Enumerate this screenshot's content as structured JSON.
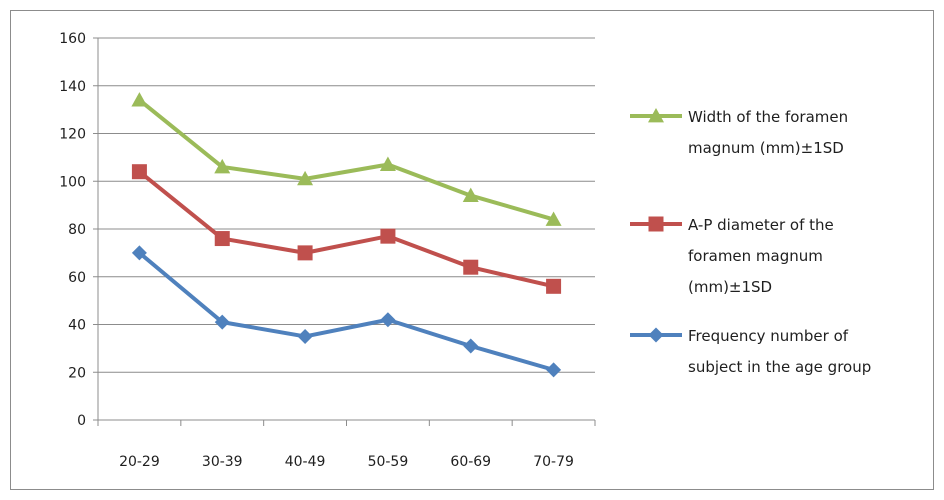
{
  "chart_data": {
    "type": "line",
    "categories": [
      "20-29",
      "30-39",
      "40-49",
      "50-59",
      "60-69",
      "70-79"
    ],
    "series": [
      {
        "name": "Width of the foramen magnum (mm)±1SD",
        "legend_lines": [
          "Width of the foramen",
          "magnum (mm)±1SD"
        ],
        "values": [
          134,
          106,
          101,
          107,
          94,
          84
        ],
        "color": "#9BBB59",
        "marker": "triangle"
      },
      {
        "name": "A-P diameter of the foramen magnum (mm)±1SD",
        "legend_lines": [
          "A-P diameter of the",
          "foramen magnum",
          "(mm)±1SD"
        ],
        "values": [
          104,
          76,
          70,
          77,
          64,
          56
        ],
        "color": "#C0504D",
        "marker": "square"
      },
      {
        "name": "Frequency number of subject in the age group",
        "legend_lines": [
          "Frequency number of",
          "subject in the age group"
        ],
        "values": [
          70,
          41,
          35,
          42,
          31,
          21
        ],
        "color": "#4F81BD",
        "marker": "diamond"
      }
    ],
    "ylim": [
      0,
      160
    ],
    "yticks": [
      0,
      20,
      40,
      60,
      80,
      100,
      120,
      140,
      160
    ],
    "grid": true,
    "legend": "right"
  }
}
